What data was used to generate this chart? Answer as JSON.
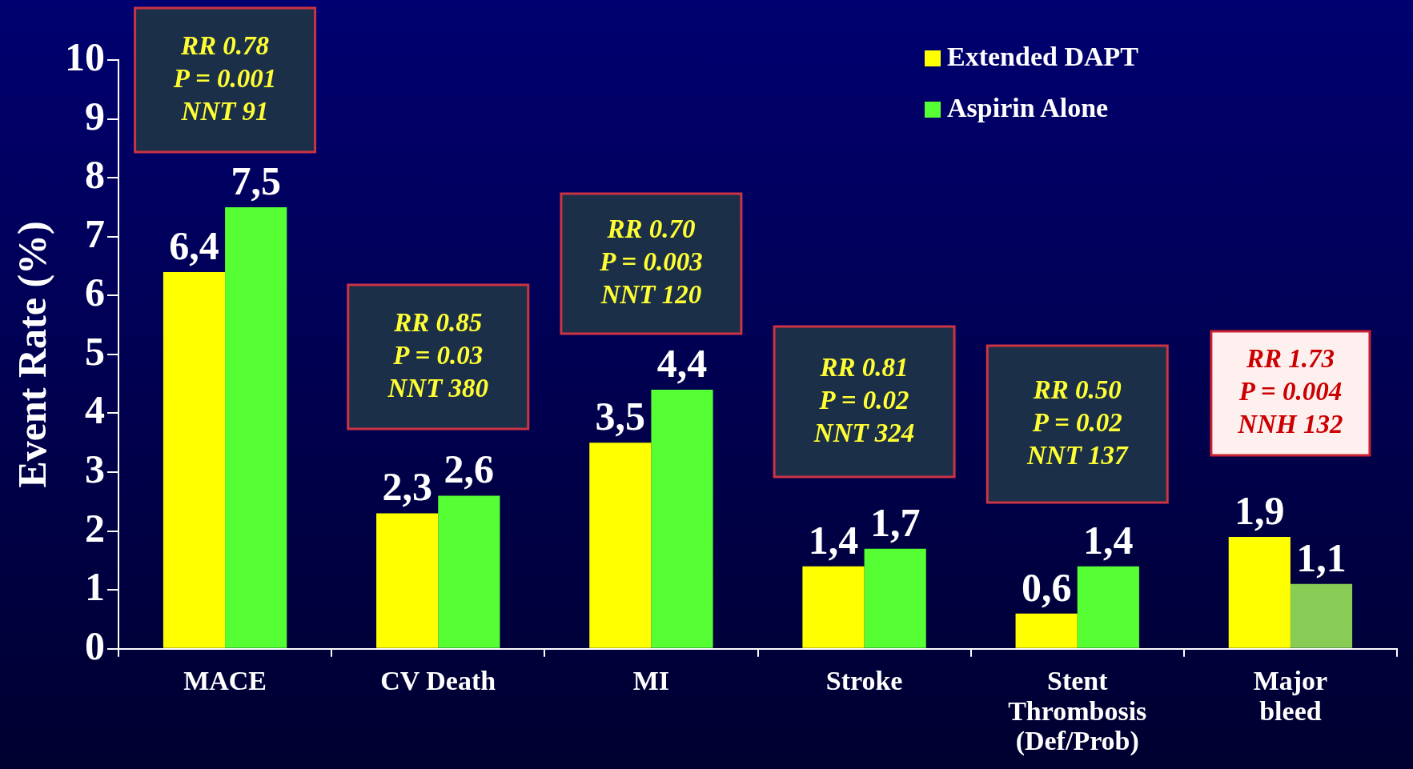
{
  "chart_data": {
    "type": "bar",
    "ylabel": "Event Rate (%)",
    "categories": [
      "MACE",
      "CV Death",
      "MI",
      "Stroke",
      "Stent\nThrombosis\n(Def/Prob)",
      "Major\nbleed"
    ],
    "series": [
      {
        "name": "Extended DAPT",
        "color": "#ffff00",
        "values": [
          6.4,
          2.3,
          3.5,
          1.4,
          0.6,
          1.9
        ],
        "value_labels": [
          "6,4",
          "2,3",
          "3,5",
          "1,4",
          "0,6",
          "1,9"
        ]
      },
      {
        "name": "Aspirin Alone",
        "color": "#55ff33",
        "colors": [
          "#55ff33",
          "#55ff33",
          "#55ff33",
          "#55ff33",
          "#55ff33",
          "#88cc55"
        ],
        "values": [
          7.5,
          2.6,
          4.4,
          1.7,
          1.4,
          1.1
        ],
        "value_labels": [
          "7,5",
          "2,6",
          "4,4",
          "1,7",
          "1,4",
          "1,1"
        ]
      }
    ],
    "ylim": [
      0,
      10
    ],
    "yticks": [
      0,
      1,
      2,
      3,
      4,
      5,
      6,
      7,
      8,
      9,
      10
    ],
    "legend": "top right",
    "annotations": [
      "RR 0.78\nP = 0.001\nNNT 91",
      "RR 0.85\nP = 0.03\nNNT 380",
      "RR 0.70\nP = 0.003\nNNT 120",
      "RR 0.81\nP = 0.02\nNNT 324",
      "RR 0.50\nP = 0.02\nNNT 137",
      "RR 1.73\nP = 0.004\nNNH 132"
    ]
  }
}
